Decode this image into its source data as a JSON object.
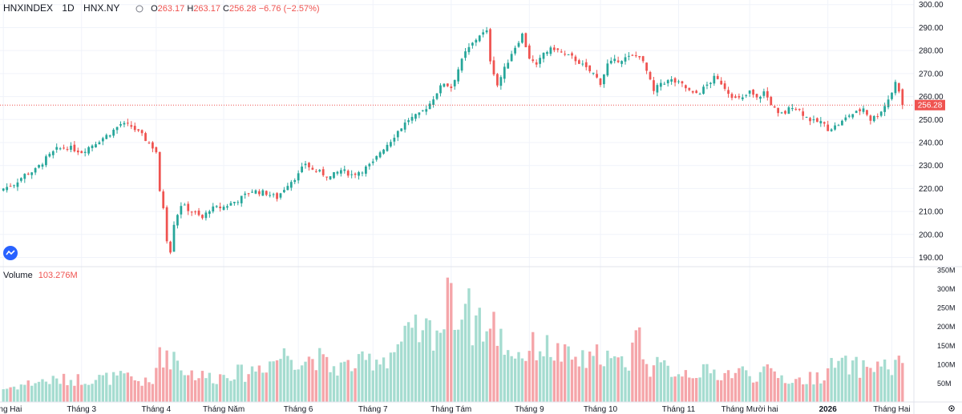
{
  "legend": {
    "symbol": "HNXINDEX",
    "interval": "1D",
    "exchange": "HNX.NY",
    "open_label": "O",
    "open": "263.17",
    "high_label": "H",
    "high": "263.17",
    "close_label": "C",
    "close": "256.28",
    "change": "−6.76 (−2.57%)"
  },
  "volume_legend": {
    "label": "Volume",
    "value": "103.276M"
  },
  "price_label": "256.28",
  "colors": {
    "up": "#26a69a",
    "down": "#ef5350",
    "up_volume": "#a5dcd0",
    "down_volume": "#f5a5a9",
    "grid": "#f0f3fa",
    "text": "#131722"
  },
  "icons": {
    "logo": "tradingview-logo-icon",
    "settings": "gear-icon",
    "visibility": "eye-icon"
  },
  "chart_data": {
    "type": "candlestick",
    "title": "HNXINDEX 1D HNX.NY",
    "price_axis": {
      "ticks": [
        190,
        200,
        210,
        220,
        230,
        240,
        250,
        260,
        270,
        280,
        290,
        300
      ],
      "tick_labels": [
        "190.00",
        "200.00",
        "210.00",
        "220.00",
        "230.00",
        "240.00",
        "250.00",
        "260.00",
        "270.00",
        "280.00",
        "290.00",
        "300.00"
      ],
      "range": [
        186,
        302
      ]
    },
    "volume_axis": {
      "ticks": [
        50,
        100,
        150,
        200,
        250,
        300,
        350
      ],
      "tick_labels": [
        "50M",
        "100M",
        "150M",
        "200M",
        "250M",
        "300M",
        "350M"
      ],
      "range": [
        0,
        352
      ]
    },
    "x_labels": [
      "Tháng Hai",
      "Tháng 3",
      "Tháng 4",
      "Tháng Năm",
      "Tháng 6",
      "Tháng 7",
      "Tháng Tám",
      "Tháng 9",
      "Tháng 10",
      "Tháng 11",
      "Tháng Mười hai",
      "2026",
      "Tháng Hai"
    ],
    "x_label_index": [
      0,
      22,
      43,
      62,
      83,
      104,
      126,
      148,
      168,
      190,
      210,
      232,
      250
    ],
    "close_anchors": [
      [
        0,
        220
      ],
      [
        3,
        222
      ],
      [
        6,
        226
      ],
      [
        9,
        228
      ],
      [
        12,
        233
      ],
      [
        15,
        237
      ],
      [
        18,
        238
      ],
      [
        22,
        236
      ],
      [
        26,
        240
      ],
      [
        30,
        244
      ],
      [
        33,
        248
      ],
      [
        36,
        247
      ],
      [
        39,
        243
      ],
      [
        42,
        238
      ],
      [
        43,
        236
      ],
      [
        44,
        218
      ],
      [
        45,
        212
      ],
      [
        46,
        198
      ],
      [
        47,
        193
      ],
      [
        48,
        205
      ],
      [
        50,
        213
      ],
      [
        53,
        210
      ],
      [
        56,
        207
      ],
      [
        58,
        211
      ],
      [
        62,
        212
      ],
      [
        66,
        215
      ],
      [
        70,
        219
      ],
      [
        74,
        218
      ],
      [
        77,
        216
      ],
      [
        80,
        222
      ],
      [
        83,
        226
      ],
      [
        85,
        231
      ],
      [
        87,
        228
      ],
      [
        89,
        227
      ],
      [
        92,
        225
      ],
      [
        95,
        228
      ],
      [
        98,
        226
      ],
      [
        101,
        228
      ],
      [
        104,
        231
      ],
      [
        106,
        236
      ],
      [
        109,
        241
      ],
      [
        111,
        245
      ],
      [
        114,
        250
      ],
      [
        117,
        252
      ],
      [
        120,
        257
      ],
      [
        122,
        262
      ],
      [
        124,
        266
      ],
      [
        126,
        264
      ],
      [
        128,
        272
      ],
      [
        130,
        279
      ],
      [
        132,
        283
      ],
      [
        134,
        287
      ],
      [
        136,
        288
      ],
      [
        137,
        276
      ],
      [
        139,
        265
      ],
      [
        141,
        272
      ],
      [
        143,
        279
      ],
      [
        146,
        287
      ],
      [
        148,
        277
      ],
      [
        150,
        273
      ],
      [
        152,
        279
      ],
      [
        155,
        281
      ],
      [
        158,
        278
      ],
      [
        160,
        277
      ],
      [
        162,
        275
      ],
      [
        164,
        272
      ],
      [
        166,
        270
      ],
      [
        168,
        266
      ],
      [
        170,
        274
      ],
      [
        173,
        276
      ],
      [
        176,
        277
      ],
      [
        179,
        278
      ],
      [
        181,
        271
      ],
      [
        183,
        262
      ],
      [
        185,
        266
      ],
      [
        188,
        267
      ],
      [
        191,
        265
      ],
      [
        194,
        261
      ],
      [
        196,
        262
      ],
      [
        198,
        265
      ],
      [
        200,
        268
      ],
      [
        202,
        266
      ],
      [
        204,
        262
      ],
      [
        206,
        259
      ],
      [
        208,
        259
      ],
      [
        210,
        262
      ],
      [
        212,
        259
      ],
      [
        214,
        262
      ],
      [
        216,
        257
      ],
      [
        218,
        252
      ],
      [
        220,
        253
      ],
      [
        222,
        256
      ],
      [
        224,
        254
      ],
      [
        226,
        251
      ],
      [
        228,
        249
      ],
      [
        230,
        249
      ],
      [
        232,
        246
      ],
      [
        234,
        247
      ],
      [
        236,
        249
      ],
      [
        238,
        252
      ],
      [
        240,
        253
      ],
      [
        242,
        255
      ],
      [
        244,
        250
      ],
      [
        246,
        252
      ],
      [
        248,
        256
      ],
      [
        250,
        262
      ],
      [
        251,
        266
      ],
      [
        252,
        263
      ],
      [
        253,
        256
      ]
    ],
    "volume_anchors": [
      [
        0,
        35
      ],
      [
        10,
        55
      ],
      [
        20,
        60
      ],
      [
        35,
        65
      ],
      [
        42,
        45
      ],
      [
        44,
        145
      ],
      [
        46,
        110
      ],
      [
        48,
        130
      ],
      [
        50,
        90
      ],
      [
        55,
        70
      ],
      [
        60,
        65
      ],
      [
        64,
        80
      ],
      [
        68,
        75
      ],
      [
        72,
        95
      ],
      [
        76,
        110
      ],
      [
        80,
        130
      ],
      [
        84,
        110
      ],
      [
        88,
        120
      ],
      [
        92,
        90
      ],
      [
        96,
        95
      ],
      [
        100,
        100
      ],
      [
        104,
        115
      ],
      [
        108,
        120
      ],
      [
        112,
        160
      ],
      [
        116,
        180
      ],
      [
        120,
        190
      ],
      [
        124,
        205
      ],
      [
        126,
        315
      ],
      [
        128,
        200
      ],
      [
        130,
        260
      ],
      [
        132,
        210
      ],
      [
        134,
        230
      ],
      [
        136,
        180
      ],
      [
        138,
        200
      ],
      [
        140,
        170
      ],
      [
        142,
        140
      ],
      [
        146,
        125
      ],
      [
        150,
        150
      ],
      [
        154,
        140
      ],
      [
        158,
        120
      ],
      [
        162,
        110
      ],
      [
        166,
        105
      ],
      [
        168,
        140
      ],
      [
        172,
        100
      ],
      [
        176,
        110
      ],
      [
        178,
        190
      ],
      [
        182,
        95
      ],
      [
        186,
        90
      ],
      [
        190,
        80
      ],
      [
        196,
        80
      ],
      [
        202,
        75
      ],
      [
        208,
        80
      ],
      [
        212,
        70
      ],
      [
        216,
        80
      ],
      [
        222,
        55
      ],
      [
        226,
        60
      ],
      [
        230,
        70
      ],
      [
        234,
        100
      ],
      [
        238,
        95
      ],
      [
        242,
        90
      ],
      [
        246,
        100
      ],
      [
        250,
        90
      ],
      [
        253,
        103
      ]
    ],
    "volume_spikes": [
      [
        126,
        315
      ],
      [
        130,
        260
      ],
      [
        44,
        145
      ],
      [
        112,
        160
      ],
      [
        178,
        190
      ],
      [
        118,
        190
      ]
    ],
    "last_close": 256.28,
    "last_volume_millions": 103.276
  }
}
